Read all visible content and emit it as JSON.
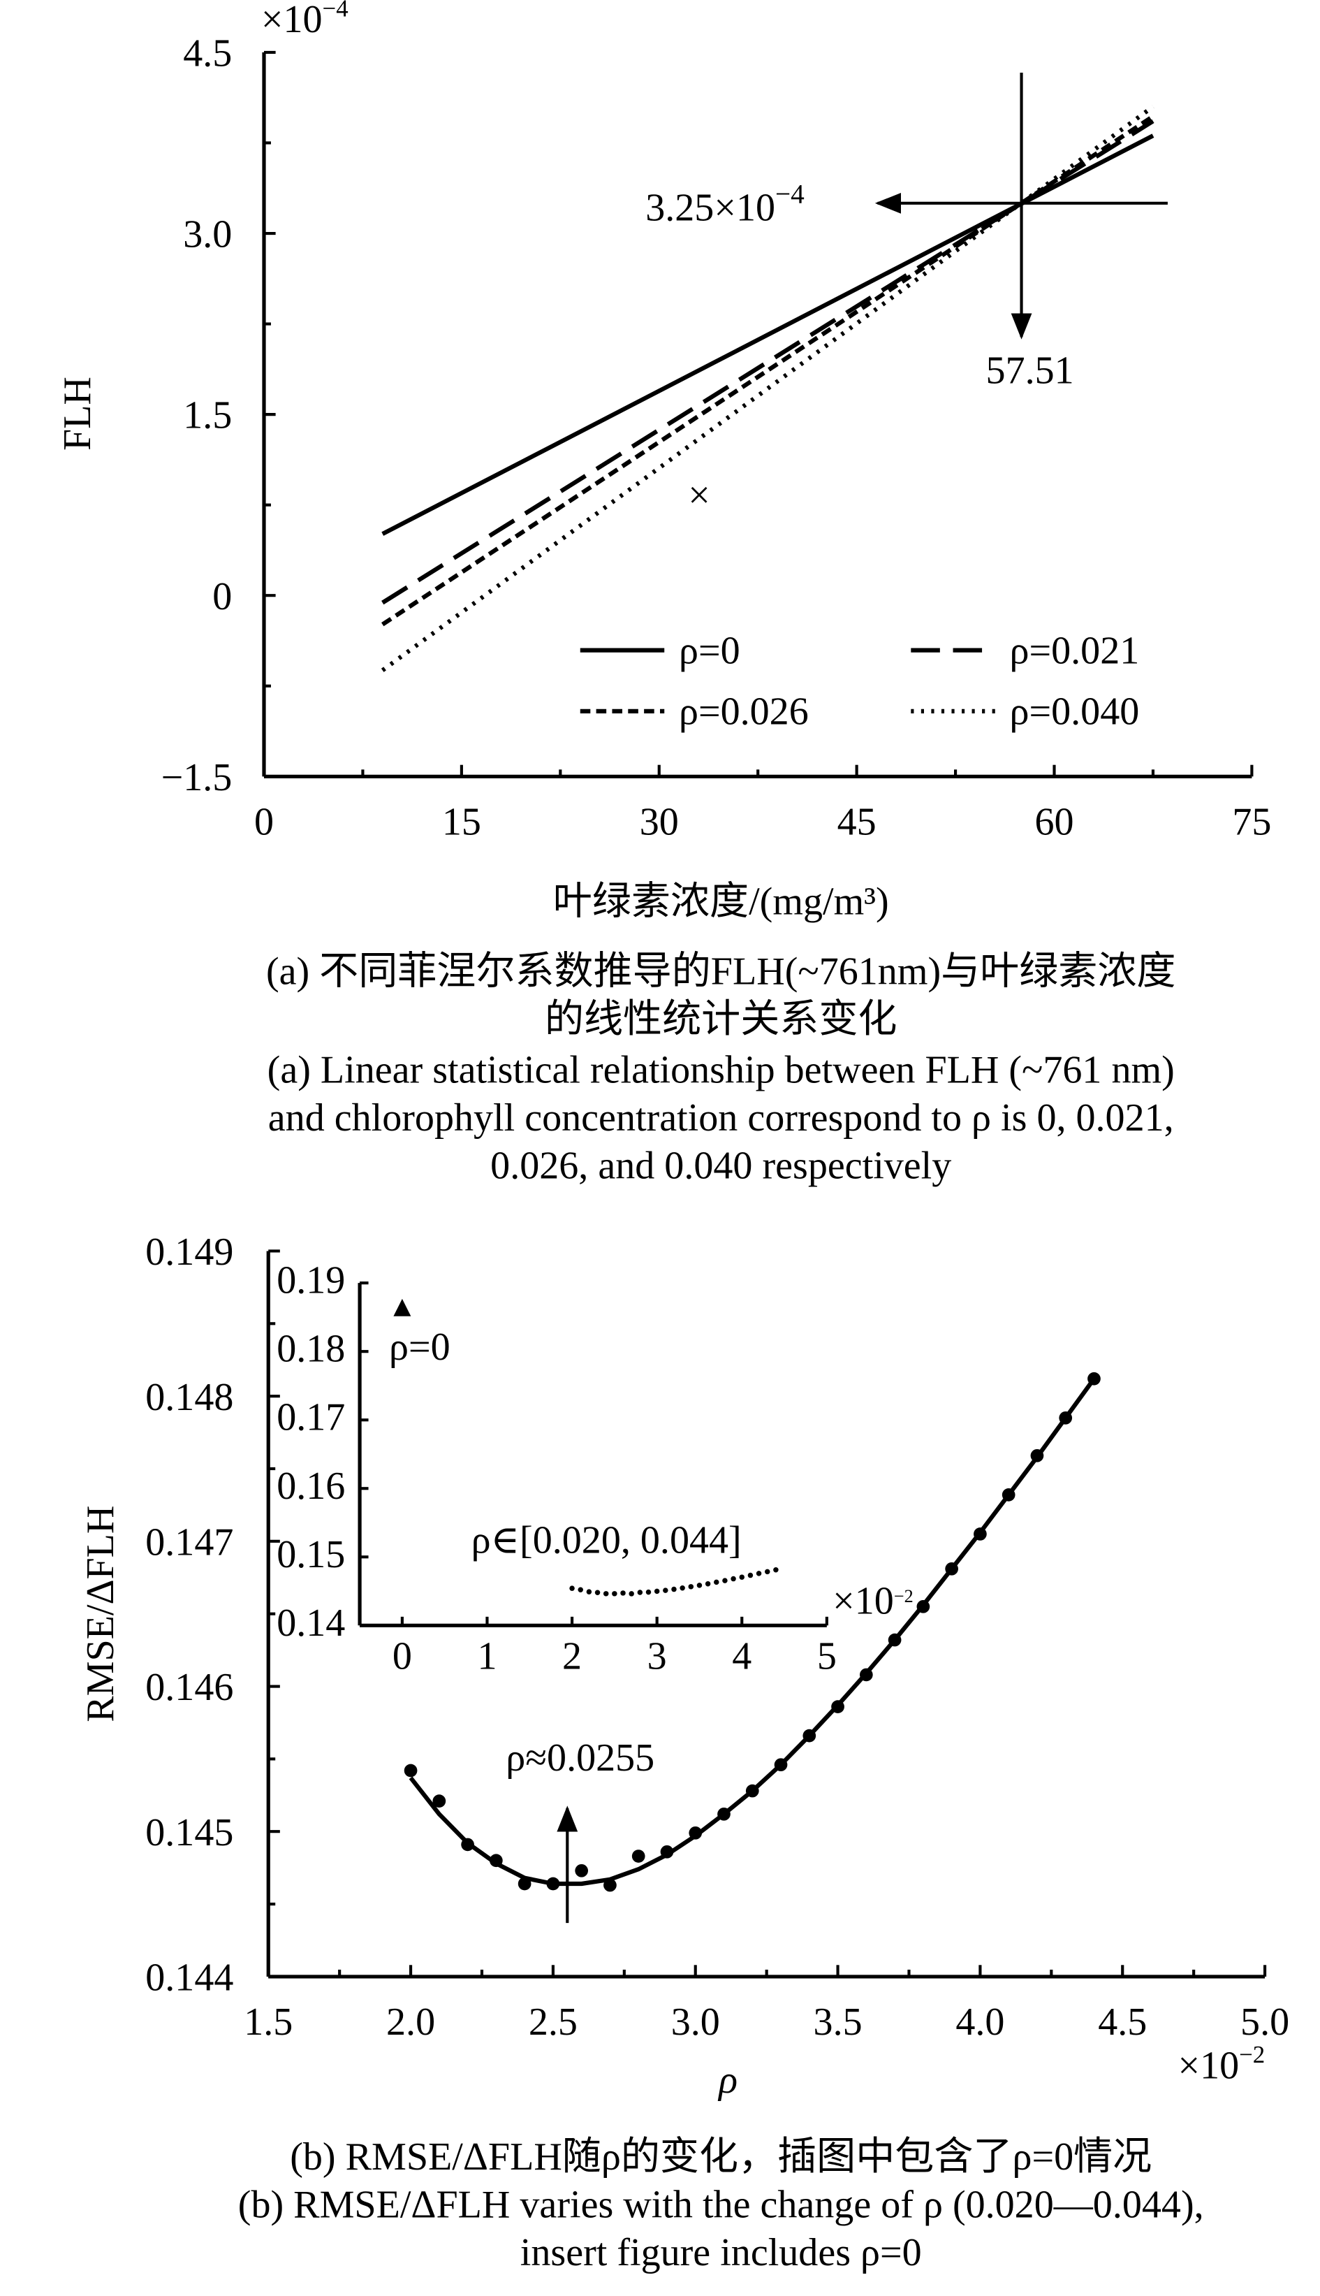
{
  "chart_data": [
    {
      "type": "line",
      "y_multiplier": {
        "base": "×10",
        "exponent": "−4"
      },
      "x_label": "叶绿素浓度/(mg/m³)",
      "y_label": "FLH",
      "xlim": [
        0,
        75
      ],
      "ylim": [
        -1.5,
        4.5
      ],
      "xticks": [
        0,
        15,
        30,
        45,
        60,
        75
      ],
      "yticks": [
        {
          "value": -1.5,
          "label": "−1.5"
        },
        0,
        1.5,
        {
          "value": 3,
          "label": "3.0"
        },
        4.5
      ],
      "xticks_minor": [
        7.5,
        22.5,
        37.5,
        52.5,
        67.5
      ],
      "yticks_minor": [
        -0.75,
        0.75,
        2.25,
        3.75
      ],
      "legend": "lower right",
      "series": [
        {
          "name": "ρ=0",
          "color": "#000000",
          "dash": "solid",
          "x": [
            9,
            67.5
          ],
          "values": [
            0.51,
            3.81
          ]
        },
        {
          "name": "ρ=0.021",
          "color": "#000000",
          "dash": "long-dash",
          "x": [
            9,
            67.5
          ],
          "values": [
            -0.06,
            3.93
          ]
        },
        {
          "name": "ρ=0.026",
          "color": "#000000",
          "dash": "dash",
          "x": [
            9,
            67.5
          ],
          "values": [
            -0.24,
            3.97
          ]
        },
        {
          "name": "ρ=0.040",
          "color": "#000000",
          "dash": "dot",
          "x": [
            9,
            67.5
          ],
          "values": [
            -0.62,
            4.05
          ]
        }
      ],
      "annotation": {
        "x": 57.51,
        "y": 3.25,
        "x_text": "57.51",
        "y_text": {
          "base": "3.25×10",
          "exponent": "−4"
        }
      },
      "marker_text": "×",
      "caption": [
        "(a) 不同菲涅尔系数推导的FLH(~761nm)与叶绿素浓度",
        "的线性统计关系变化",
        "(a) Linear statistical relationship between FLH (~761 nm)",
        "and chlorophyll concentration correspond to ρ is 0, 0.021,",
        "0.026, and 0.040 respectively"
      ]
    },
    {
      "type": "scatter",
      "x_multiplier": {
        "base": "×10",
        "exponent": "−2"
      },
      "x_label": "ρ",
      "y_label": "RMSE/ΔFLH",
      "xlim": [
        1.5,
        5
      ],
      "ylim": [
        0.144,
        0.149
      ],
      "xticks": [
        1.5,
        {
          "value": 2,
          "label": "2.0"
        },
        2.5,
        {
          "value": 3,
          "label": "3.0"
        },
        3.5,
        {
          "value": 4,
          "label": "4.0"
        },
        4.5,
        {
          "value": 5,
          "label": "5.0"
        }
      ],
      "yticks": [
        0.144,
        0.145,
        0.146,
        0.147,
        0.148,
        0.149
      ],
      "xticks_minor": [
        1.75,
        2.25,
        2.75,
        3.25,
        3.75,
        4.25,
        4.75
      ],
      "yticks_minor": [
        0.1445,
        0.1455,
        0.1465,
        0.1475,
        0.1485
      ],
      "series": [
        {
          "marker": "circle",
          "color": "#000000",
          "x": [
            2.0,
            2.1,
            2.2,
            2.3,
            2.4,
            2.5,
            2.6,
            2.7,
            2.8,
            2.9,
            3.0,
            3.1,
            3.2,
            3.3,
            3.4,
            3.5,
            3.6,
            3.7,
            3.8,
            3.9,
            4.0,
            4.1,
            4.2,
            4.3,
            4.4
          ],
          "values": [
            0.14542,
            0.14521,
            0.14491,
            0.1448,
            0.14464,
            0.14464,
            0.14473,
            0.14463,
            0.14483,
            0.14486,
            0.14499,
            0.14512,
            0.14528,
            0.14546,
            0.14566,
            0.14586,
            0.14608,
            0.14632,
            0.14655,
            0.14681,
            0.14705,
            0.14732,
            0.14759,
            0.14785,
            0.14812
          ]
        },
        {
          "marker": "none",
          "color": "#000000",
          "x": [
            2.0,
            2.1,
            2.2,
            2.3,
            2.4,
            2.5,
            2.6,
            2.7,
            2.8,
            2.9,
            3.0,
            3.1,
            3.2,
            3.3,
            3.4,
            3.5,
            3.6,
            3.7,
            3.8,
            3.9,
            4.0,
            4.1,
            4.2,
            4.3,
            4.4
          ],
          "values": [
            0.14537,
            0.14512,
            0.14492,
            0.14478,
            0.14468,
            0.14464,
            0.14464,
            0.14467,
            0.14474,
            0.14484,
            0.14497,
            0.14512,
            0.14528,
            0.14546,
            0.14566,
            0.14587,
            0.14609,
            0.14632,
            0.14656,
            0.14681,
            0.14706,
            0.14732,
            0.14758,
            0.14785,
            0.14812
          ]
        }
      ],
      "annotation": {
        "x": 2.55,
        "text": "ρ≈0.0255"
      },
      "inset": {
        "xlim": [
          -0.5,
          5
        ],
        "ylim": [
          0.14,
          0.19
        ],
        "xticks": [
          0,
          1,
          2,
          3,
          4,
          5
        ],
        "yticks": [
          0.14,
          0.15,
          0.16,
          0.17,
          0.18,
          0.19
        ],
        "x_multiplier": {
          "base": "×10",
          "exponent": "−2"
        },
        "series": [
          {
            "name": "ρ=0",
            "marker": "triangle",
            "color": "#000000",
            "x": [
              0
            ],
            "values": [
              0.1862
            ]
          }
        ],
        "range_label": "ρ∈[0.020, 0.044]"
      },
      "caption": [
        "(b) RMSE/ΔFLH随ρ的变化，插图中包含了ρ=0情况",
        "(b) RMSE/ΔFLH varies with the change of ρ (0.020—0.044),",
        "insert figure includes ρ=0"
      ]
    }
  ]
}
